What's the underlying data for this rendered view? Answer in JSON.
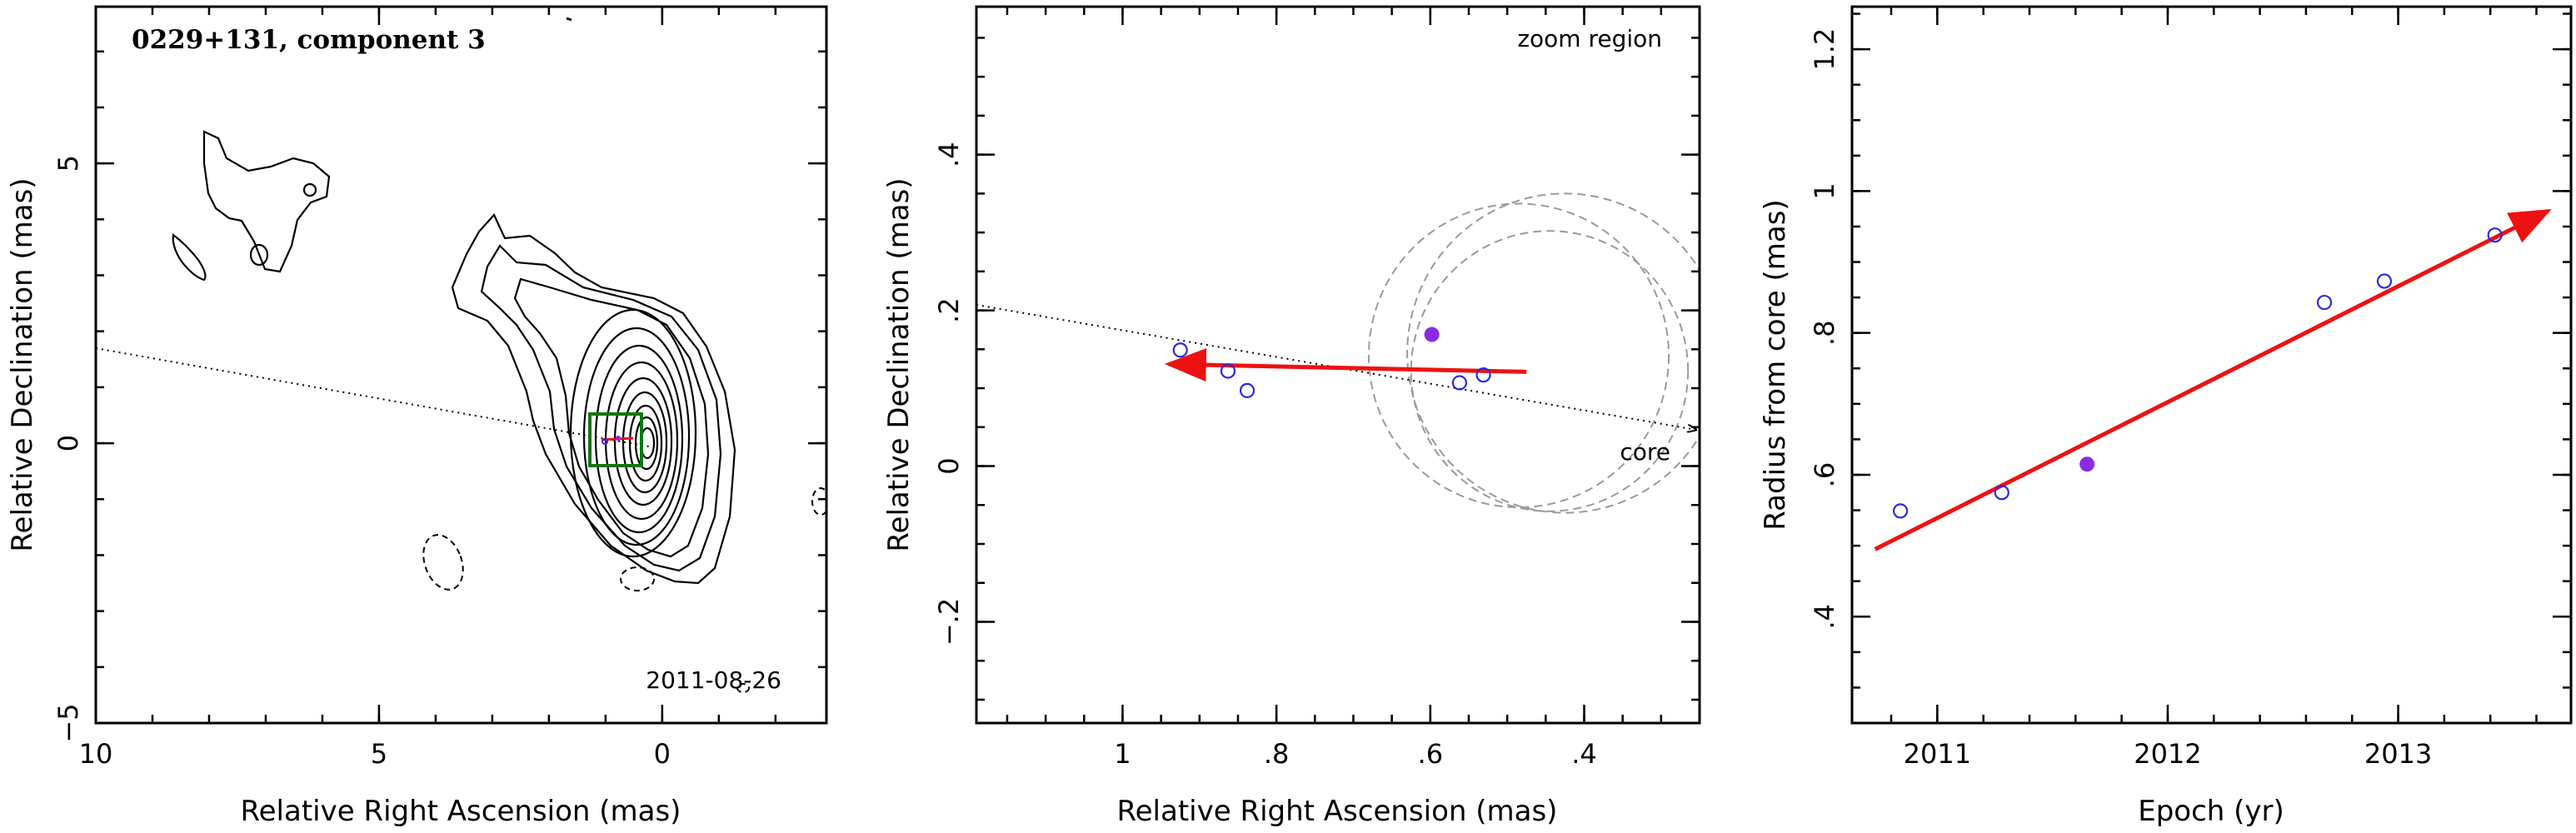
{
  "colors": {
    "frame": "#000000",
    "contour": "#000000",
    "open_points": "#2a2ae6",
    "filled_point": "#8a2be2",
    "fit_arrow": "#ee1111",
    "circles": "#9a9a9a",
    "box": "#117711"
  },
  "chart_data": [
    {
      "type": "contour",
      "title": "0229+131, component 3",
      "date": "2011-08-26",
      "xlabel": "Relative Right Ascension (mas)",
      "ylabel": "Relative Declination (mas)",
      "xlim": [
        10,
        -2.9
      ],
      "ylim": [
        -5,
        7.8
      ],
      "xticks": [
        10,
        5,
        0
      ],
      "yticks": [
        -5,
        0,
        5
      ],
      "grid": false
    },
    {
      "type": "scatter",
      "annotation_top": "zoom region",
      "annotation_core": "core",
      "xlabel": "Relative Right Ascension (mas)",
      "ylabel": "Relative Declination (mas)",
      "xlim": [
        1.19,
        0.25
      ],
      "ylim": [
        -0.33,
        0.59
      ],
      "xticks": [
        1,
        0.8,
        0.6,
        0.4
      ],
      "yticks": [
        -0.2,
        0,
        0.2,
        0.4
      ],
      "grid": false,
      "open_points": [
        {
          "x": 0.925,
          "y": 0.149
        },
        {
          "x": 0.863,
          "y": 0.122
        },
        {
          "x": 0.838,
          "y": 0.097
        },
        {
          "x": 0.562,
          "y": 0.107
        },
        {
          "x": 0.531,
          "y": 0.117
        }
      ],
      "filled_point": {
        "x": 0.598,
        "y": 0.169
      },
      "fit_arrow": {
        "from": [
          0.475,
          0.121
        ],
        "to": [
          0.94,
          0.131
        ]
      },
      "circles": [
        {
          "x": 0.485,
          "y": 0.142,
          "r": 0.195
        },
        {
          "x": 0.445,
          "y": 0.122,
          "r": 0.18
        },
        {
          "x": 0.425,
          "y": 0.145,
          "r": 0.205
        }
      ]
    },
    {
      "type": "scatter",
      "xlabel": "Epoch (yr)",
      "ylabel": "Radius from core (mas)",
      "xlim": [
        2010.63,
        2013.75
      ],
      "ylim": [
        0.25,
        1.26
      ],
      "xticks": [
        2011,
        2012,
        2013
      ],
      "yticks": [
        0.4,
        0.6,
        0.8,
        1,
        1.2
      ],
      "grid": false,
      "open_points": [
        {
          "x": 2010.84,
          "y": 0.549
        },
        {
          "x": 2011.28,
          "y": 0.575
        },
        {
          "x": 2012.68,
          "y": 0.843
        },
        {
          "x": 2012.94,
          "y": 0.873
        },
        {
          "x": 2013.42,
          "y": 0.938
        }
      ],
      "filled_point": {
        "x": 2011.65,
        "y": 0.615
      },
      "fit_arrow": {
        "from": [
          2010.73,
          0.495
        ],
        "to": [
          2013.65,
          0.972
        ]
      }
    }
  ]
}
